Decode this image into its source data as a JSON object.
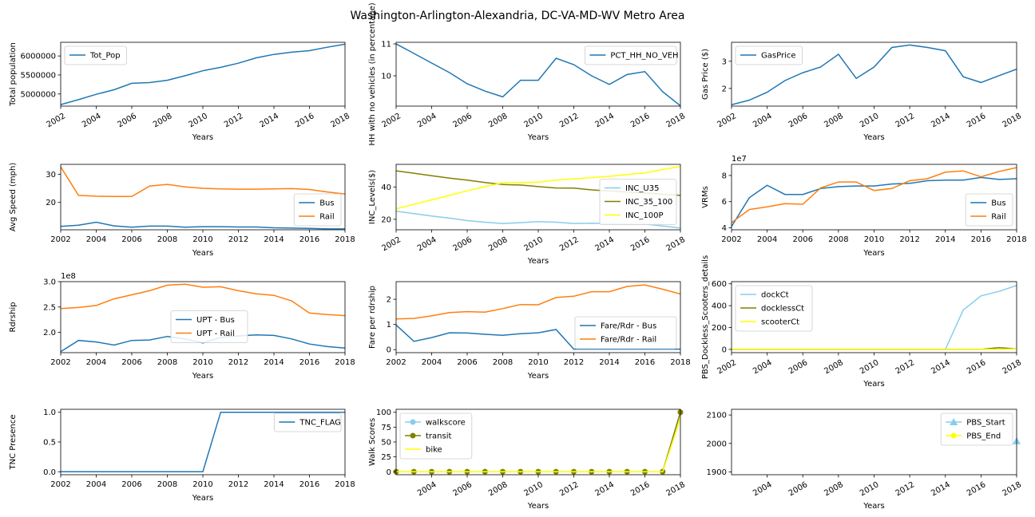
{
  "figure": {
    "title": "Washington-Arlington-Alexandria, DC-VA-MD-WV Metro Area"
  },
  "chart_data": [
    {
      "type": "line",
      "xlabel": "Years",
      "ylabel": "Total population",
      "xlim": [
        2002,
        2018
      ],
      "ylim": [
        4680000,
        6360000
      ],
      "yticks": [
        5000000,
        5500000,
        6000000
      ],
      "xticks": [
        2002,
        2004,
        2006,
        2008,
        2010,
        2012,
        2014,
        2016,
        2018
      ],
      "rotate_xticks": true,
      "legend": "upper left",
      "x": [
        2002,
        2003,
        2004,
        2005,
        2006,
        2007,
        2008,
        2009,
        2010,
        2011,
        2012,
        2013,
        2014,
        2015,
        2016,
        2017,
        2018
      ],
      "series": [
        {
          "name": "Tot_Pop",
          "color": "#1f77b4",
          "values": [
            4720000,
            4850000,
            4990000,
            5110000,
            5280000,
            5300000,
            5360000,
            5480000,
            5610000,
            5700000,
            5810000,
            5950000,
            6040000,
            6100000,
            6140000,
            6230000,
            6310000
          ]
        }
      ]
    },
    {
      "type": "line",
      "xlabel": "Years",
      "ylabel": "HH with no vehicles (in percentage)",
      "xlim": [
        2002,
        2018
      ],
      "ylim": [
        9.05,
        11.05
      ],
      "yticks": [
        10,
        11
      ],
      "xticks": [
        2002,
        2004,
        2006,
        2008,
        2010,
        2012,
        2014,
        2016,
        2018
      ],
      "rotate_xticks": true,
      "legend": "upper right",
      "x": [
        2002,
        2003,
        2004,
        2005,
        2006,
        2007,
        2008,
        2009,
        2010,
        2011,
        2012,
        2013,
        2014,
        2015,
        2016,
        2017,
        2018
      ],
      "series": [
        {
          "name": "PCT_HH_NO_VEH",
          "color": "#1f77b4",
          "values": [
            11.0,
            10.7,
            10.4,
            10.1,
            9.75,
            9.52,
            9.34,
            9.86,
            9.86,
            10.55,
            10.35,
            10.0,
            9.73,
            10.04,
            10.13,
            9.5,
            9.06
          ]
        }
      ]
    },
    {
      "type": "line",
      "xlabel": "Years",
      "ylabel": "Gas Price ($)",
      "xlim": [
        2002,
        2018
      ],
      "ylim": [
        1.35,
        3.7
      ],
      "yticks": [
        2,
        3
      ],
      "xticks": [
        2002,
        2004,
        2006,
        2008,
        2010,
        2012,
        2014,
        2016,
        2018
      ],
      "rotate_xticks": true,
      "legend": "upper left",
      "x": [
        2002,
        2003,
        2004,
        2005,
        2006,
        2007,
        2008,
        2009,
        2010,
        2011,
        2012,
        2013,
        2014,
        2015,
        2016,
        2017,
        2018
      ],
      "series": [
        {
          "name": "GasPrice",
          "color": "#1f77b4",
          "values": [
            1.4,
            1.57,
            1.86,
            2.29,
            2.58,
            2.79,
            3.26,
            2.37,
            2.79,
            3.51,
            3.6,
            3.51,
            3.39,
            2.43,
            2.22,
            2.47,
            2.71
          ]
        }
      ]
    },
    {
      "type": "line",
      "xlabel": "Years",
      "ylabel": "Avg Speed (mph)",
      "xlim": [
        2002,
        2018
      ],
      "ylim": [
        10.3,
        33.5
      ],
      "yticks": [
        20,
        30
      ],
      "xticks": [
        2002,
        2004,
        2006,
        2008,
        2010,
        2012,
        2014,
        2016,
        2018
      ],
      "rotate_xticks": false,
      "legend": "lower right",
      "x": [
        2002,
        2003,
        2004,
        2005,
        2006,
        2007,
        2008,
        2009,
        2010,
        2011,
        2012,
        2013,
        2014,
        2015,
        2016,
        2017,
        2018
      ],
      "series": [
        {
          "name": "Bus",
          "color": "#1f77b4",
          "values": [
            11.5,
            11.9,
            13.0,
            11.7,
            11.2,
            11.6,
            11.6,
            11.2,
            11.4,
            11.4,
            11.3,
            11.3,
            11.0,
            10.9,
            10.8,
            10.6,
            10.6
          ]
        },
        {
          "name": "Rail",
          "color": "#ff7f0e",
          "values": [
            32.6,
            22.5,
            22.2,
            22.1,
            22.1,
            25.8,
            26.4,
            25.5,
            25.0,
            24.8,
            24.7,
            24.7,
            24.8,
            24.9,
            24.6,
            23.7,
            23.0
          ]
        }
      ]
    },
    {
      "type": "line",
      "xlabel": "Years",
      "ylabel": "INC_Levels($)",
      "xlim": [
        2002,
        2018
      ],
      "ylim": [
        13.5,
        54
      ],
      "yticks": [
        20,
        40
      ],
      "xticks": [
        2002,
        2004,
        2006,
        2008,
        2010,
        2012,
        2014,
        2016,
        2018
      ],
      "rotate_xticks": true,
      "legend": "center right",
      "x": [
        2002,
        2003,
        2004,
        2005,
        2006,
        2007,
        2008,
        2009,
        2010,
        2011,
        2012,
        2013,
        2014,
        2015,
        2016,
        2017,
        2018
      ],
      "series": [
        {
          "name": "INC_U35",
          "color": "#87ceeb",
          "values": [
            25,
            23.5,
            22,
            20.7,
            19.2,
            18.2,
            17.4,
            17.9,
            18.6,
            18.2,
            17.4,
            17.6,
            17.4,
            17.0,
            17.1,
            15.8,
            14.6
          ]
        },
        {
          "name": "INC_35_100",
          "color": "#808000",
          "values": [
            50,
            48.5,
            47,
            45.5,
            44.2,
            42.8,
            41.5,
            41.2,
            40.2,
            39.4,
            39.3,
            38.2,
            37.5,
            36.9,
            36.3,
            35.5,
            34.8
          ]
        },
        {
          "name": "INC_100P",
          "color": "#ffff00",
          "values": [
            26.5,
            29.2,
            32.0,
            34.8,
            37.6,
            40.2,
            42.6,
            42.8,
            43.0,
            44.2,
            45.0,
            45.8,
            46.6,
            47.7,
            48.7,
            50.8,
            52.6
          ]
        }
      ]
    },
    {
      "type": "line",
      "xlabel": "Years",
      "ylabel": "VRMs",
      "yoffset": "1e7",
      "xlim": [
        2002,
        2018
      ],
      "ylim": [
        3.85,
        8.85
      ],
      "yticks": [
        4,
        6,
        8
      ],
      "xticks": [
        2002,
        2004,
        2006,
        2008,
        2010,
        2012,
        2014,
        2016,
        2018
      ],
      "rotate_xticks": false,
      "legend": "lower right",
      "x": [
        2002,
        2003,
        2004,
        2005,
        2006,
        2007,
        2008,
        2009,
        2010,
        2011,
        2012,
        2013,
        2014,
        2015,
        2016,
        2017,
        2018
      ],
      "series": [
        {
          "name": "Bus",
          "color": "#1f77b4",
          "values": [
            4.1,
            6.3,
            7.25,
            6.55,
            6.55,
            7.0,
            7.15,
            7.2,
            7.2,
            7.35,
            7.4,
            7.6,
            7.65,
            7.65,
            7.85,
            7.7,
            7.75
          ]
        },
        {
          "name": "Rail",
          "color": "#ff7f0e",
          "values": [
            4.4,
            5.4,
            5.6,
            5.85,
            5.8,
            7.05,
            7.5,
            7.5,
            6.85,
            7.0,
            7.6,
            7.75,
            8.25,
            8.35,
            7.9,
            8.3,
            8.6
          ]
        }
      ]
    },
    {
      "type": "line",
      "xlabel": "Years",
      "ylabel": "Rdrship",
      "yoffset": "1e8",
      "xlim": [
        2002,
        2018
      ],
      "ylim": [
        1.6,
        3.0
      ],
      "yticks": [
        2.0,
        2.5,
        3.0
      ],
      "ytick_labels": [
        "2.0",
        "2.5",
        "3.0"
      ],
      "xticks": [
        2002,
        2004,
        2006,
        2008,
        2010,
        2012,
        2014,
        2016,
        2018
      ],
      "rotate_xticks": false,
      "legend": "center",
      "x": [
        2002,
        2003,
        2004,
        2005,
        2006,
        2007,
        2008,
        2009,
        2010,
        2011,
        2012,
        2013,
        2014,
        2015,
        2016,
        2017,
        2018
      ],
      "series": [
        {
          "name": "UPT - Bus",
          "color": "#1f77b4",
          "values": [
            1.62,
            1.84,
            1.81,
            1.75,
            1.84,
            1.85,
            1.92,
            1.87,
            1.79,
            1.9,
            1.93,
            1.95,
            1.94,
            1.87,
            1.77,
            1.72,
            1.69
          ]
        },
        {
          "name": "UPT - Rail",
          "color": "#ff7f0e",
          "values": [
            2.47,
            2.49,
            2.53,
            2.66,
            2.74,
            2.82,
            2.93,
            2.95,
            2.89,
            2.9,
            2.82,
            2.76,
            2.73,
            2.62,
            2.38,
            2.35,
            2.33
          ]
        }
      ]
    },
    {
      "type": "line",
      "xlabel": "Years",
      "ylabel": "Fare per rdrship",
      "xlim": [
        2002,
        2018
      ],
      "ylim": [
        -0.12,
        2.7
      ],
      "yticks": [
        0,
        1,
        2
      ],
      "xticks": [
        2002,
        2004,
        2006,
        2008,
        2010,
        2012,
        2014,
        2016,
        2018
      ],
      "rotate_xticks": false,
      "legend": "lower right",
      "x": [
        2002,
        2003,
        2004,
        2005,
        2006,
        2007,
        2008,
        2009,
        2010,
        2011,
        2012,
        2013,
        2014,
        2015,
        2016,
        2017,
        2018
      ],
      "series": [
        {
          "name": "Fare/Rdr - Bus",
          "color": "#1f77b4",
          "values": [
            0.98,
            0.33,
            0.48,
            0.67,
            0.66,
            0.61,
            0.57,
            0.63,
            0.67,
            0.8,
            0.02,
            0.02,
            0.02,
            0.02,
            0.02,
            0.02,
            0.02
          ]
        },
        {
          "name": "Fare/Rdr - Rail",
          "color": "#ff7f0e",
          "values": [
            1.22,
            1.24,
            1.34,
            1.47,
            1.51,
            1.49,
            1.63,
            1.79,
            1.78,
            2.07,
            2.12,
            2.3,
            2.3,
            2.51,
            2.57,
            2.4,
            2.21
          ]
        }
      ]
    },
    {
      "type": "line",
      "xlabel": "Years",
      "ylabel": "PBS_Dockless_Scooters_details",
      "xlim": [
        2002,
        2018
      ],
      "ylim": [
        -30,
        620
      ],
      "yticks": [
        0,
        200,
        400,
        600
      ],
      "xticks": [
        2002,
        2004,
        2006,
        2008,
        2010,
        2012,
        2014,
        2016,
        2018
      ],
      "rotate_xticks": true,
      "legend": "upper left",
      "x": [
        2002,
        2003,
        2004,
        2005,
        2006,
        2007,
        2008,
        2009,
        2010,
        2011,
        2012,
        2013,
        2014,
        2015,
        2016,
        2017,
        2018
      ],
      "series": [
        {
          "name": "dockCt",
          "color": "#87ceeb",
          "values": [
            0,
            0,
            0,
            0,
            0,
            0,
            0,
            0,
            0,
            0,
            0,
            0,
            0,
            360,
            490,
            530,
            585
          ]
        },
        {
          "name": "docklessCt",
          "color": "#808000",
          "values": [
            0,
            0,
            0,
            0,
            0,
            0,
            0,
            0,
            0,
            0,
            0,
            0,
            0,
            0,
            0,
            15,
            5
          ]
        },
        {
          "name": "scooterCt",
          "color": "#ffff00",
          "values": [
            0,
            0,
            0,
            0,
            0,
            0,
            0,
            0,
            0,
            0,
            0,
            0,
            0,
            0,
            0,
            0,
            5
          ]
        }
      ]
    },
    {
      "type": "line",
      "xlabel": "Years",
      "ylabel": "TNC Presence",
      "xlim": [
        2002,
        2018
      ],
      "ylim": [
        -0.05,
        1.05
      ],
      "yticks": [
        0.0,
        0.5,
        1.0
      ],
      "ytick_labels": [
        "0.0",
        "0.5",
        "1.0"
      ],
      "xticks": [
        2002,
        2004,
        2006,
        2008,
        2010,
        2012,
        2014,
        2016,
        2018
      ],
      "rotate_xticks": false,
      "legend": "upper right",
      "x": [
        2002,
        2003,
        2004,
        2005,
        2006,
        2007,
        2008,
        2009,
        2010,
        2011,
        2012,
        2013,
        2014,
        2015,
        2016,
        2017,
        2018
      ],
      "series": [
        {
          "name": "TNC_FLAG",
          "color": "#1f77b4",
          "values": [
            0,
            0,
            0,
            0,
            0,
            0,
            0,
            0,
            0,
            1,
            1,
            1,
            1,
            1,
            1,
            1,
            1
          ]
        }
      ]
    },
    {
      "type": "line",
      "xlabel": "Years",
      "ylabel": "Walk Scores",
      "xlim": [
        2002,
        2018
      ],
      "ylim": [
        -5,
        105
      ],
      "yticks": [
        0,
        25,
        50,
        75,
        100
      ],
      "xticks": [
        2004,
        2006,
        2008,
        2010,
        2012,
        2014,
        2016,
        2018
      ],
      "rotate_xticks": true,
      "legend": "upper left",
      "x": [
        2002,
        2003,
        2004,
        2005,
        2006,
        2007,
        2008,
        2009,
        2010,
        2011,
        2012,
        2013,
        2014,
        2015,
        2016,
        2017,
        2018
      ],
      "series": [
        {
          "name": "walkscore",
          "color": "#87ceeb",
          "marker": "circle",
          "values": [
            0,
            0,
            0,
            0,
            0,
            0,
            0,
            0,
            0,
            0,
            0,
            0,
            0,
            0,
            0,
            0,
            100
          ]
        },
        {
          "name": "transit",
          "color": "#808000",
          "marker": "circle",
          "values": [
            0,
            0,
            0,
            0,
            0,
            0,
            0,
            0,
            0,
            0,
            0,
            0,
            0,
            0,
            0,
            0,
            100
          ]
        },
        {
          "name": "bike",
          "color": "#ffff00",
          "values": [
            0,
            0,
            0,
            0,
            0,
            0,
            0,
            0,
            0,
            0,
            0,
            0,
            0,
            0,
            0,
            0,
            90
          ]
        }
      ]
    },
    {
      "type": "line",
      "xlabel": "Years",
      "ylabel": "",
      "xlim": [
        2002,
        2018
      ],
      "ylim": [
        1890,
        2120
      ],
      "yticks": [
        1900,
        2000,
        2100
      ],
      "xticks": [
        2004,
        2006,
        2008,
        2010,
        2012,
        2014,
        2016,
        2018
      ],
      "rotate_xticks": true,
      "legend": "upper right",
      "x": [
        2018
      ],
      "series": [
        {
          "name": "PBS_Start",
          "color": "#87ceeb",
          "marker": "triangle",
          "values": [
            2008
          ]
        },
        {
          "name": "PBS_End",
          "color": "#ffff00",
          "marker": "circle",
          "values": [
            null
          ]
        }
      ]
    }
  ]
}
